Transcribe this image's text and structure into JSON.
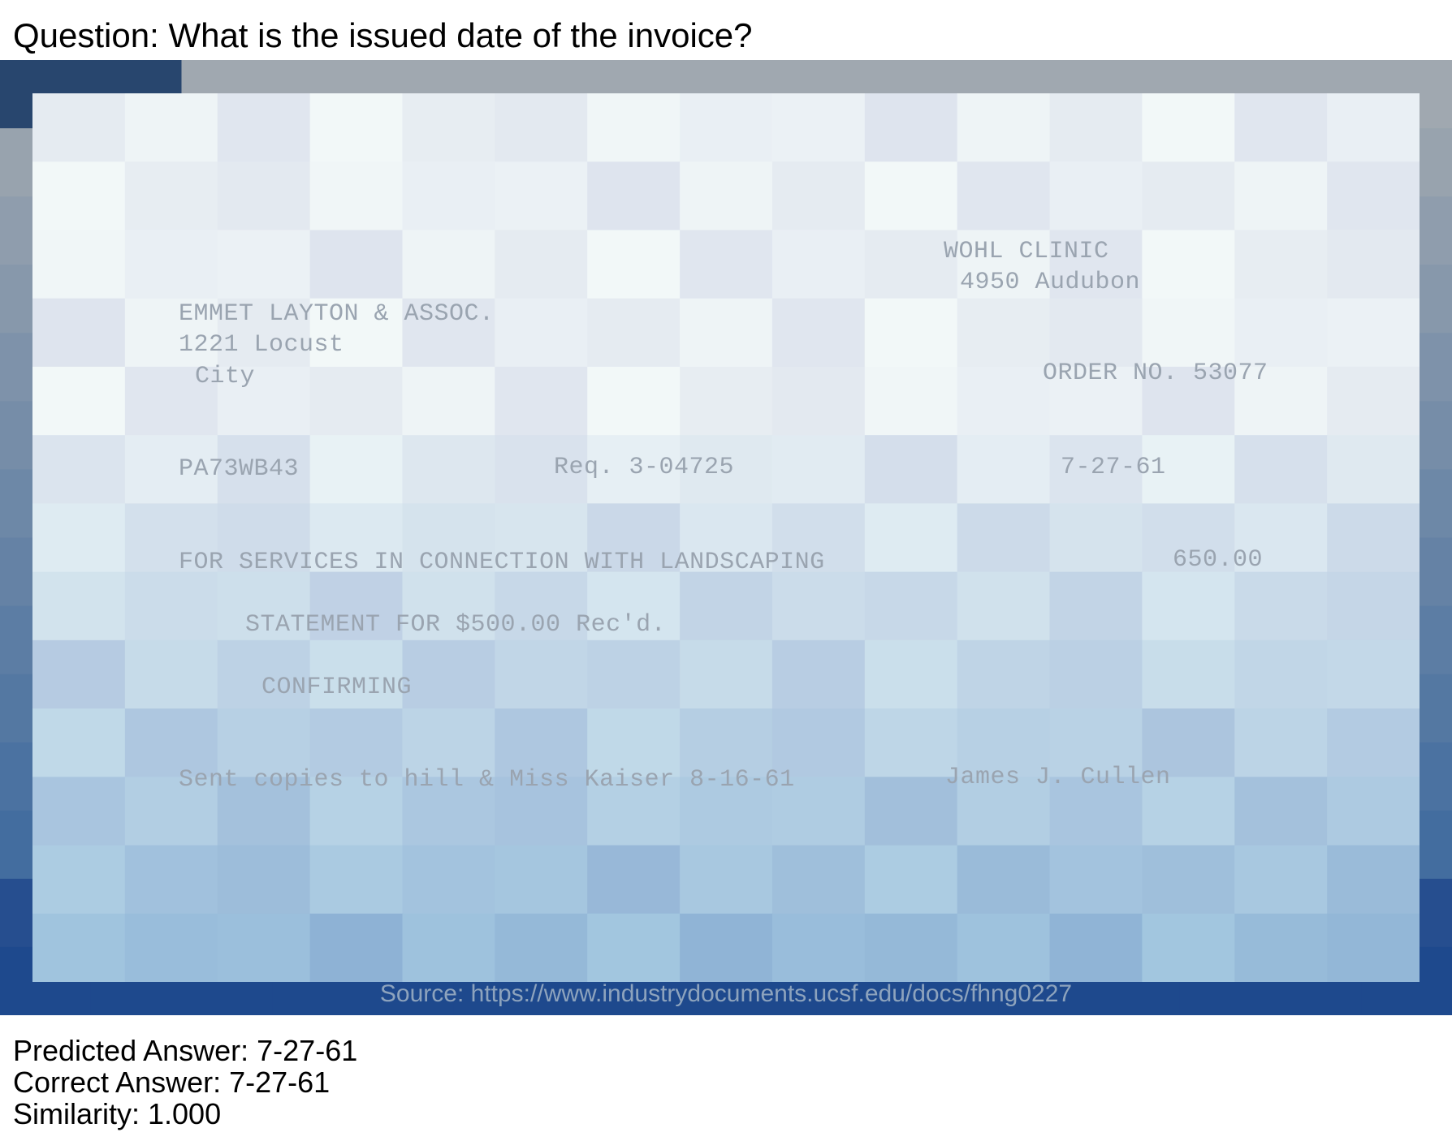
{
  "question": "Question: What is the issued date of the invoice?",
  "document": {
    "lines": {
      "clinic_name": "WOHL CLINIC",
      "clinic_address": "4950 Audubon",
      "vendor_name": "EMMET LAYTON & ASSOC.",
      "vendor_street": "1221 Locust",
      "vendor_city": "City",
      "order_no": "ORDER NO. 53077",
      "account_code": "PA73WB43",
      "requisition": "Req. 3-04725",
      "date": "7-27-61",
      "services": "FOR SERVICES IN CONNECTION WITH LANDSCAPING",
      "amount": "650.00",
      "statement": "STATEMENT FOR $500.00 Rec'd.",
      "confirming": "CONFIRMING",
      "copies_note": "Sent copies to hill & Miss Kaiser 8-16-61",
      "signature": "James J. Cullen"
    },
    "source": "Source: https://www.industrydocuments.ucsf.edu/docs/fhng0227"
  },
  "results": {
    "predicted": "Predicted Answer: 7-27-61",
    "correct": "Correct Answer: 7-27-61",
    "similarity": "Similarity: 1.000"
  }
}
